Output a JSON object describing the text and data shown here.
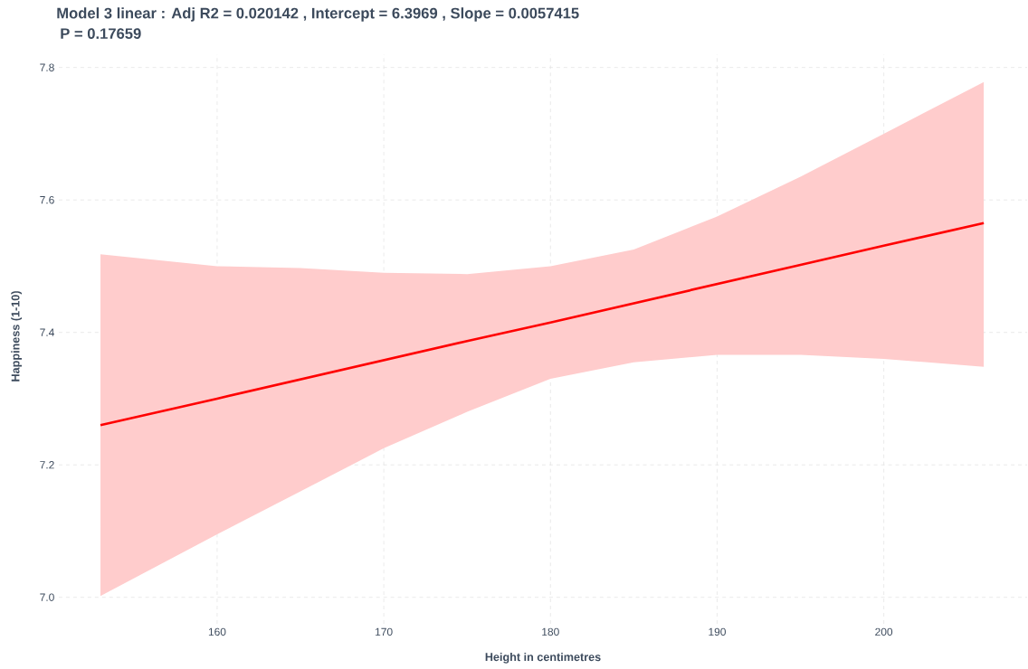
{
  "chart_data": {
    "type": "line",
    "title": "Model 3 linear :  Adj R2 =  0.020142 ,  Intercept = 6.3969 ,  Slope = 0.0057415",
    "subtitle": "P = 0.17659",
    "xlabel": "Height in centimetres",
    "ylabel": "Happiness (1-10)",
    "x": [
      153,
      160,
      165,
      170,
      175,
      180,
      185,
      190,
      195,
      200,
      206
    ],
    "series": [
      {
        "color": "#ff0000",
        "values": [
          7.26,
          7.3,
          7.329,
          7.358,
          7.387,
          7.415,
          7.444,
          7.473,
          7.502,
          7.531,
          7.565
        ],
        "lower": [
          7.002,
          7.095,
          7.16,
          7.225,
          7.28,
          7.33,
          7.355,
          7.366,
          7.366,
          7.36,
          7.348
        ],
        "upper": [
          7.518,
          7.5,
          7.497,
          7.49,
          7.488,
          7.5,
          7.525,
          7.575,
          7.635,
          7.7,
          7.778
        ]
      }
    ],
    "xlim": [
      150.5,
      208.6
    ],
    "ylim": [
      6.96,
      7.82
    ],
    "xticks": [
      160,
      170,
      180,
      190,
      200
    ],
    "yticks": [
      {
        "value": 7.0,
        "label": "7.0"
      },
      {
        "value": 7.2,
        "label": "7.2"
      },
      {
        "value": 7.4,
        "label": "7.4"
      },
      {
        "value": 7.6,
        "label": "7.6"
      },
      {
        "value": 7.8,
        "label": "7.8"
      }
    ],
    "grid": true,
    "marker": "none",
    "line_style": "solid"
  }
}
